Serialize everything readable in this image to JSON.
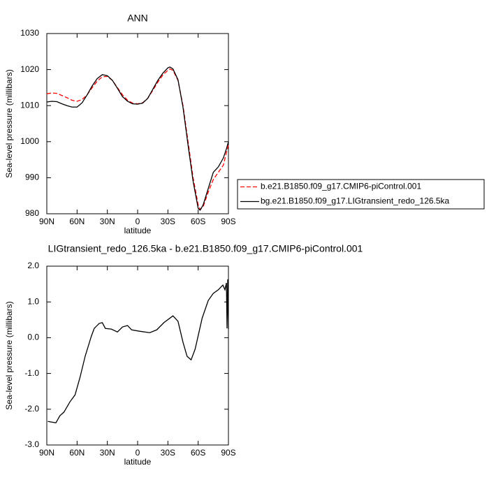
{
  "chart_data": [
    {
      "type": "line",
      "title": "ANN",
      "x_label": "latitude",
      "y_label": "Sea-level pressure (millibars)",
      "x": [
        90,
        85,
        80,
        75,
        70,
        65,
        60,
        55,
        50,
        45,
        40,
        35,
        30,
        25,
        20,
        15,
        10,
        5,
        0,
        -5,
        -10,
        -15,
        -20,
        -25,
        -30,
        -32,
        -35,
        -40,
        -45,
        -50,
        -55,
        -60,
        -62,
        -65,
        -70,
        -75,
        -80,
        -85,
        -88,
        -90
      ],
      "series": [
        {
          "name": "b.e21.B1850.f09_g17.CMIP6-piControl.001",
          "color": "#ff0000",
          "dash": true,
          "values": [
            1013.3,
            1013.5,
            1013.4,
            1012.8,
            1012.2,
            1011.5,
            1011.2,
            1011.7,
            1013,
            1015,
            1016.8,
            1018,
            1018.1,
            1017,
            1015,
            1013,
            1011.5,
            1010.7,
            1010.5,
            1010.8,
            1012,
            1014.2,
            1016.5,
            1018.5,
            1019.8,
            1020.2,
            1019.8,
            1017,
            1010,
            1000,
            990,
            982.5,
            981.2,
            982,
            986,
            989.5,
            991.5,
            993.5,
            997,
            999
          ]
        },
        {
          "name": "bg.e21.B1850.f09_g17.LIGtransient_redo_126.5ka",
          "color": "#000000",
          "dash": false,
          "values": [
            1011,
            1011.2,
            1011.1,
            1010.5,
            1010,
            1009.6,
            1009.6,
            1010.8,
            1013,
            1015.5,
            1017.5,
            1018.6,
            1018.3,
            1017,
            1014.8,
            1012.5,
            1011.2,
            1010.5,
            1010.4,
            1010.7,
            1012,
            1014.5,
            1017,
            1019,
            1020.5,
            1020.7,
            1020.2,
            1017.2,
            1009.5,
            999,
            989,
            981.5,
            981,
            982.5,
            987,
            991.5,
            993,
            995.5,
            998,
            1000
          ]
        }
      ],
      "xlim": [
        90,
        -90
      ],
      "xticks": [
        {
          "value": 90,
          "label": "90N"
        },
        {
          "value": 60,
          "label": "60N"
        },
        {
          "value": 30,
          "label": "30N"
        },
        0,
        {
          "value": -30,
          "label": "30S"
        },
        {
          "value": -60,
          "label": "60S"
        },
        {
          "value": -90,
          "label": "90S"
        }
      ],
      "ylim": [
        980,
        1030
      ],
      "yticks": [
        980,
        990,
        1000,
        1010,
        1020,
        1030
      ],
      "legend": "right"
    },
    {
      "type": "line",
      "title": "LIGtransient_redo_126.5ka - b.e21.B1850.f09_g17.CMIP6-piControl.001",
      "x_label": "latitude",
      "y_label": "Sea-level pressure (millibars)",
      "x": [
        89,
        81,
        77,
        73,
        67,
        62,
        57,
        52,
        46,
        43,
        38,
        35,
        32,
        26,
        20,
        15,
        10,
        6,
        -2,
        -12,
        -19,
        -26,
        -35,
        -40,
        -45,
        -49,
        -53,
        -57,
        -64,
        -70,
        -75,
        -80,
        -83,
        -84.5,
        -86.5,
        -88,
        -88.6,
        -89.3,
        -90
      ],
      "series": [
        {
          "color": "#000000",
          "dash": false,
          "values": [
            -2.34,
            -2.38,
            -2.18,
            -2.08,
            -1.79,
            -1.6,
            -1.1,
            -0.52,
            0.03,
            0.26,
            0.4,
            0.42,
            0.26,
            0.24,
            0.16,
            0.3,
            0.34,
            0.22,
            0.18,
            0.14,
            0.22,
            0.42,
            0.61,
            0.46,
            -0.13,
            -0.52,
            -0.62,
            -0.32,
            0.55,
            1.04,
            1.24,
            1.34,
            1.43,
            1.47,
            1.34,
            1.53,
            0.26,
            1.63,
            0.25
          ]
        }
      ],
      "xlim": [
        90,
        -90
      ],
      "xticks": [
        {
          "value": 90,
          "label": "90N"
        },
        {
          "value": 60,
          "label": "60N"
        },
        {
          "value": 30,
          "label": "30N"
        },
        0,
        {
          "value": -30,
          "label": "30S"
        },
        {
          "value": -60,
          "label": "60S"
        },
        {
          "value": -90,
          "label": "90S"
        }
      ],
      "ylim": [
        -3,
        2
      ],
      "yticks": [
        {
          "value": -3,
          "label": "-3.0"
        },
        {
          "value": -2,
          "label": "-2.0"
        },
        {
          "value": -1,
          "label": "-1.0"
        },
        {
          "value": 0,
          "label": "0.0"
        },
        {
          "value": 1,
          "label": "1.0"
        },
        {
          "value": 2,
          "label": "2.0"
        }
      ]
    }
  ]
}
